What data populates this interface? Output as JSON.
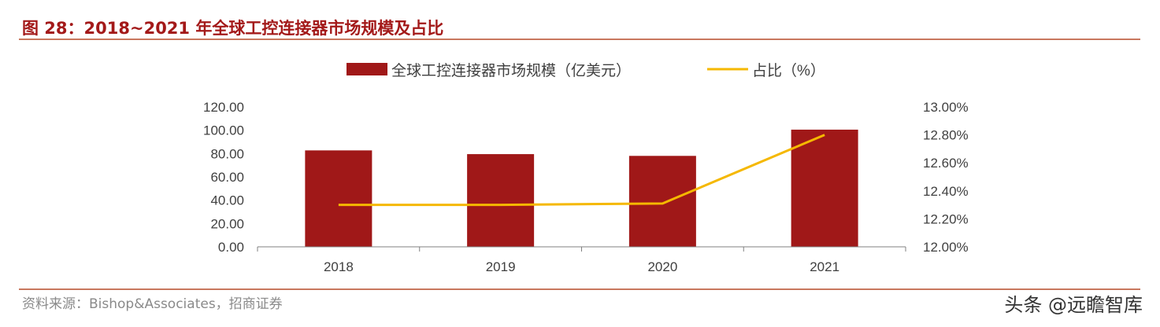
{
  "title": "图 28：2018~2021 年全球工控连接器市场规模及占比",
  "source": "资料来源：Bishop&Associates，招商证券",
  "watermark": "头条 @远瞻智库",
  "chart_data": {
    "type": "bar",
    "categories": [
      "2018",
      "2019",
      "2020",
      "2021"
    ],
    "series": [
      {
        "name": "全球工控连接器市场规模（亿美元）",
        "type": "bar",
        "axis": "left",
        "color": "#a01818",
        "values": [
          82.7,
          79.5,
          78.0,
          100.5
        ]
      },
      {
        "name": "占比（%）",
        "type": "line",
        "axis": "right",
        "color": "#f5b800",
        "values": [
          12.3,
          12.3,
          12.31,
          12.8
        ]
      }
    ],
    "ylim": [
      0,
      120
    ],
    "yticks": [
      "0.00",
      "20.00",
      "40.00",
      "60.00",
      "80.00",
      "100.00",
      "120.00"
    ],
    "y2lim": [
      12.0,
      13.0
    ],
    "y2ticks": [
      "12.00%",
      "12.20%",
      "12.40%",
      "12.60%",
      "12.80%",
      "13.00%"
    ],
    "legend": "top",
    "grid": false
  }
}
